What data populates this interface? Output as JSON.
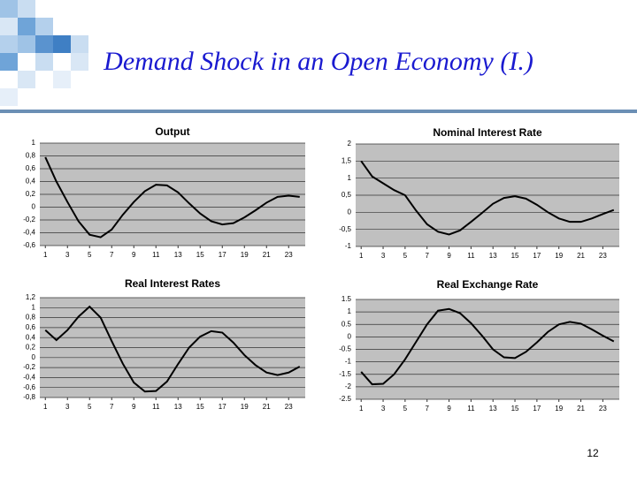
{
  "title": "Demand Shock in an Open Economy (I.)",
  "page_number": "12",
  "chart_data": [
    {
      "type": "line",
      "title": "Output",
      "x": [
        1,
        2,
        3,
        4,
        5,
        6,
        7,
        8,
        9,
        10,
        11,
        12,
        13,
        14,
        15,
        16,
        17,
        18,
        19,
        20,
        21,
        22,
        23,
        24
      ],
      "xlim": [
        0.5,
        24.5
      ],
      "xticks": [
        1,
        3,
        5,
        7,
        9,
        11,
        13,
        15,
        17,
        19,
        21,
        23
      ],
      "ylim": [
        -0.6,
        1
      ],
      "yticks": [
        {
          "value": -0.6,
          "label": "-0,6"
        },
        {
          "value": -0.4,
          "label": "-0,4"
        },
        {
          "value": -0.2,
          "label": "-0,2"
        },
        0,
        {
          "value": 0.2,
          "label": "0,2"
        },
        {
          "value": 0.4,
          "label": "0,4"
        },
        {
          "value": 0.6,
          "label": "0,6"
        },
        {
          "value": 0.8,
          "label": "0,8"
        },
        1
      ],
      "grid": true,
      "color": "#000000",
      "values": [
        0.78,
        0.4,
        0.08,
        -0.22,
        -0.43,
        -0.47,
        -0.35,
        -0.12,
        0.08,
        0.25,
        0.35,
        0.34,
        0.23,
        0.06,
        -0.1,
        -0.22,
        -0.27,
        -0.25,
        -0.16,
        -0.05,
        0.07,
        0.16,
        0.18,
        0.16
      ]
    },
    {
      "type": "line",
      "title": "Nominal Interest Rate",
      "x": [
        1,
        2,
        3,
        4,
        5,
        6,
        7,
        8,
        9,
        10,
        11,
        12,
        13,
        14,
        15,
        16,
        17,
        18,
        19,
        20,
        21,
        22,
        23,
        24
      ],
      "xlim": [
        0.5,
        24.5
      ],
      "xticks": [
        1,
        3,
        5,
        7,
        9,
        11,
        13,
        15,
        17,
        19,
        21,
        23
      ],
      "ylim": [
        -1,
        2
      ],
      "yticks": [
        -1,
        {
          "value": -0.5,
          "label": "-0,5"
        },
        0,
        {
          "value": 0.5,
          "label": "0,5"
        },
        1,
        {
          "value": 1.5,
          "label": "1,5"
        },
        2
      ],
      "grid": true,
      "color": "#000000",
      "values": [
        1.5,
        1.05,
        0.85,
        0.65,
        0.5,
        0.05,
        -0.35,
        -0.57,
        -0.65,
        -0.53,
        -0.28,
        -0.02,
        0.25,
        0.42,
        0.47,
        0.4,
        0.22,
        0.0,
        -0.18,
        -0.28,
        -0.28,
        -0.18,
        -0.05,
        0.07
      ]
    },
    {
      "type": "line",
      "title": "Real Interest Rates",
      "x": [
        1,
        2,
        3,
        4,
        5,
        6,
        7,
        8,
        9,
        10,
        11,
        12,
        13,
        14,
        15,
        16,
        17,
        18,
        19,
        20,
        21,
        22,
        23,
        24
      ],
      "xlim": [
        0.5,
        24.5
      ],
      "xticks": [
        1,
        3,
        5,
        7,
        9,
        11,
        13,
        15,
        17,
        19,
        21,
        23
      ],
      "ylim": [
        -0.8,
        1.2
      ],
      "yticks": [
        {
          "value": -0.8,
          "label": "-0,8"
        },
        {
          "value": -0.6,
          "label": "-0,6"
        },
        {
          "value": -0.4,
          "label": "-0,4"
        },
        {
          "value": -0.2,
          "label": "-0,2"
        },
        0,
        {
          "value": 0.2,
          "label": "0,2"
        },
        {
          "value": 0.4,
          "label": "0,4"
        },
        {
          "value": 0.6,
          "label": "0,6"
        },
        {
          "value": 0.8,
          "label": "0,8"
        },
        1,
        {
          "value": 1.2,
          "label": "1,2"
        }
      ],
      "grid": true,
      "color": "#000000",
      "values": [
        0.55,
        0.35,
        0.55,
        0.82,
        1.02,
        0.8,
        0.33,
        -0.12,
        -0.5,
        -0.68,
        -0.67,
        -0.48,
        -0.13,
        0.2,
        0.42,
        0.53,
        0.5,
        0.3,
        0.05,
        -0.15,
        -0.3,
        -0.35,
        -0.3,
        -0.18
      ]
    },
    {
      "type": "line",
      "title": "Real Exchange Rate",
      "x": [
        1,
        2,
        3,
        4,
        5,
        6,
        7,
        8,
        9,
        10,
        11,
        12,
        13,
        14,
        15,
        16,
        17,
        18,
        19,
        20,
        21,
        22,
        23,
        24
      ],
      "xlim": [
        0.5,
        24.5
      ],
      "xticks": [
        1,
        3,
        5,
        7,
        9,
        11,
        13,
        15,
        17,
        19,
        21,
        23
      ],
      "ylim": [
        -2.5,
        1.5
      ],
      "yticks": [
        -2.5,
        -2,
        -1.5,
        -1,
        -0.5,
        0,
        0.5,
        1,
        1.5
      ],
      "grid": true,
      "color": "#000000",
      "values": [
        -1.4,
        -1.9,
        -1.88,
        -1.5,
        -0.9,
        -0.2,
        0.5,
        1.05,
        1.12,
        0.95,
        0.55,
        0.05,
        -0.5,
        -0.82,
        -0.85,
        -0.6,
        -0.22,
        0.2,
        0.5,
        0.6,
        0.53,
        0.3,
        0.05,
        -0.18
      ]
    }
  ]
}
